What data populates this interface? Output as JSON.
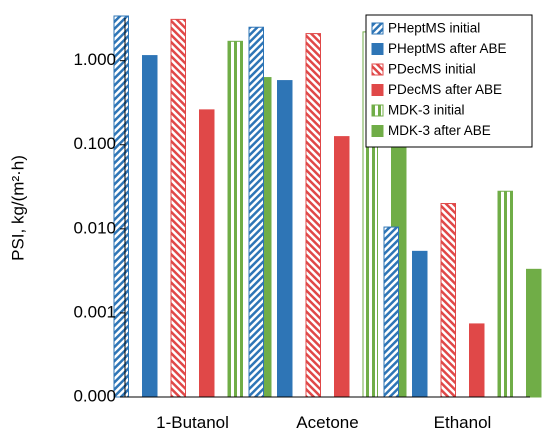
{
  "chart_data": {
    "type": "bar",
    "yscale": "log",
    "ylabel": "PSI, kg/(m²·h)",
    "xlabel": "",
    "ylim": [
      0.0001,
      3.4
    ],
    "ytick_values": [
      0.0001,
      0.001,
      0.01,
      0.1,
      1
    ],
    "ytick_labels": [
      "0.000",
      "0.001",
      "0.010",
      "0.100",
      "1.000"
    ],
    "categories": [
      "1-Butanol",
      "Acetone",
      "Ethanol"
    ],
    "legend_position": "top-right",
    "grid": false,
    "series": [
      {
        "name": "PHeptMS initial",
        "color": "#2e75b6",
        "fill": "hatched",
        "values": [
          3.4,
          2.5,
          0.0105
        ]
      },
      {
        "name": "PHeptMS after ABE",
        "color": "#2e75b6",
        "fill": "solid",
        "values": [
          1.15,
          0.58,
          0.0054
        ]
      },
      {
        "name": "PDecMS initial",
        "color": "#e04848",
        "fill": "hatched",
        "values": [
          3.1,
          2.1,
          0.02
        ]
      },
      {
        "name": "PDecMS after ABE",
        "color": "#e04848",
        "fill": "solid",
        "values": [
          0.26,
          0.125,
          0.00074
        ]
      },
      {
        "name": "MDK-3 initial",
        "color": "#70ad47",
        "fill": "striped",
        "values": [
          1.7,
          2.2,
          0.028
        ]
      },
      {
        "name": "MDK-3 after ABE",
        "color": "#70ad47",
        "fill": "solid",
        "values": [
          0.63,
          1.18,
          0.0033
        ]
      }
    ]
  }
}
